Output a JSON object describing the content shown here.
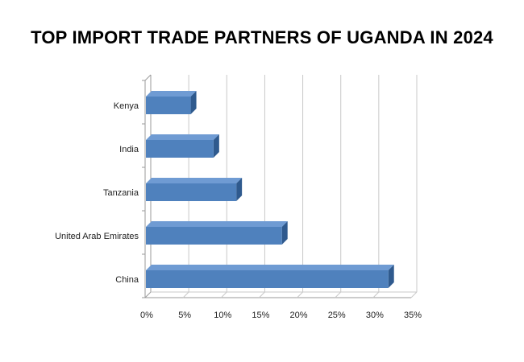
{
  "chart_data": {
    "type": "bar",
    "orientation": "horizontal",
    "style": "3d",
    "title": "TOP IMPORT TRADE PARTNERS OF UGANDA IN 2024",
    "categories": [
      "Kenya",
      "India",
      "Tanzania",
      "United Arab Emirates",
      "China"
    ],
    "values": [
      6,
      9,
      12,
      18,
      32
    ],
    "unit": "%",
    "xlim": [
      0,
      35
    ],
    "ticks": [
      "0%",
      "5%",
      "10%",
      "15%",
      "20%",
      "25%",
      "30%",
      "35%"
    ],
    "xlabel": "",
    "ylabel": "",
    "grid": true,
    "legend": "none",
    "colors": {
      "bar_front": "#4f81bd",
      "bar_top": "#6f9bd3",
      "bar_side": "#2f5a8e",
      "grid": "#c8c8c8",
      "axis": "#9a9a9a"
    }
  }
}
